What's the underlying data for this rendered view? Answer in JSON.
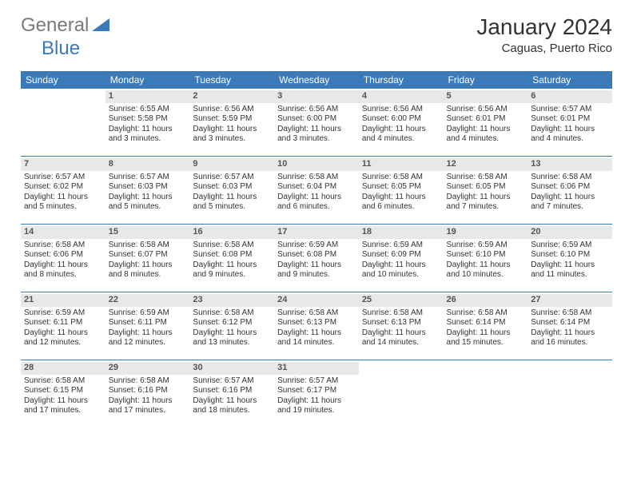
{
  "logo": {
    "general": "General",
    "blue": "Blue"
  },
  "title": "January 2024",
  "location": "Caguas, Puerto Rico",
  "colors": {
    "header_bg": "#3a7ab8",
    "daynum_bg": "#e8e8e8"
  },
  "weekdays": [
    "Sunday",
    "Monday",
    "Tuesday",
    "Wednesday",
    "Thursday",
    "Friday",
    "Saturday"
  ],
  "weeks": [
    [
      {
        "n": "",
        "sr": "",
        "ss": "",
        "dl": ""
      },
      {
        "n": "1",
        "sr": "Sunrise: 6:55 AM",
        "ss": "Sunset: 5:58 PM",
        "dl": "Daylight: 11 hours and 3 minutes."
      },
      {
        "n": "2",
        "sr": "Sunrise: 6:56 AM",
        "ss": "Sunset: 5:59 PM",
        "dl": "Daylight: 11 hours and 3 minutes."
      },
      {
        "n": "3",
        "sr": "Sunrise: 6:56 AM",
        "ss": "Sunset: 6:00 PM",
        "dl": "Daylight: 11 hours and 3 minutes."
      },
      {
        "n": "4",
        "sr": "Sunrise: 6:56 AM",
        "ss": "Sunset: 6:00 PM",
        "dl": "Daylight: 11 hours and 4 minutes."
      },
      {
        "n": "5",
        "sr": "Sunrise: 6:56 AM",
        "ss": "Sunset: 6:01 PM",
        "dl": "Daylight: 11 hours and 4 minutes."
      },
      {
        "n": "6",
        "sr": "Sunrise: 6:57 AM",
        "ss": "Sunset: 6:01 PM",
        "dl": "Daylight: 11 hours and 4 minutes."
      }
    ],
    [
      {
        "n": "7",
        "sr": "Sunrise: 6:57 AM",
        "ss": "Sunset: 6:02 PM",
        "dl": "Daylight: 11 hours and 5 minutes."
      },
      {
        "n": "8",
        "sr": "Sunrise: 6:57 AM",
        "ss": "Sunset: 6:03 PM",
        "dl": "Daylight: 11 hours and 5 minutes."
      },
      {
        "n": "9",
        "sr": "Sunrise: 6:57 AM",
        "ss": "Sunset: 6:03 PM",
        "dl": "Daylight: 11 hours and 5 minutes."
      },
      {
        "n": "10",
        "sr": "Sunrise: 6:58 AM",
        "ss": "Sunset: 6:04 PM",
        "dl": "Daylight: 11 hours and 6 minutes."
      },
      {
        "n": "11",
        "sr": "Sunrise: 6:58 AM",
        "ss": "Sunset: 6:05 PM",
        "dl": "Daylight: 11 hours and 6 minutes."
      },
      {
        "n": "12",
        "sr": "Sunrise: 6:58 AM",
        "ss": "Sunset: 6:05 PM",
        "dl": "Daylight: 11 hours and 7 minutes."
      },
      {
        "n": "13",
        "sr": "Sunrise: 6:58 AM",
        "ss": "Sunset: 6:06 PM",
        "dl": "Daylight: 11 hours and 7 minutes."
      }
    ],
    [
      {
        "n": "14",
        "sr": "Sunrise: 6:58 AM",
        "ss": "Sunset: 6:06 PM",
        "dl": "Daylight: 11 hours and 8 minutes."
      },
      {
        "n": "15",
        "sr": "Sunrise: 6:58 AM",
        "ss": "Sunset: 6:07 PM",
        "dl": "Daylight: 11 hours and 8 minutes."
      },
      {
        "n": "16",
        "sr": "Sunrise: 6:58 AM",
        "ss": "Sunset: 6:08 PM",
        "dl": "Daylight: 11 hours and 9 minutes."
      },
      {
        "n": "17",
        "sr": "Sunrise: 6:59 AM",
        "ss": "Sunset: 6:08 PM",
        "dl": "Daylight: 11 hours and 9 minutes."
      },
      {
        "n": "18",
        "sr": "Sunrise: 6:59 AM",
        "ss": "Sunset: 6:09 PM",
        "dl": "Daylight: 11 hours and 10 minutes."
      },
      {
        "n": "19",
        "sr": "Sunrise: 6:59 AM",
        "ss": "Sunset: 6:10 PM",
        "dl": "Daylight: 11 hours and 10 minutes."
      },
      {
        "n": "20",
        "sr": "Sunrise: 6:59 AM",
        "ss": "Sunset: 6:10 PM",
        "dl": "Daylight: 11 hours and 11 minutes."
      }
    ],
    [
      {
        "n": "21",
        "sr": "Sunrise: 6:59 AM",
        "ss": "Sunset: 6:11 PM",
        "dl": "Daylight: 11 hours and 12 minutes."
      },
      {
        "n": "22",
        "sr": "Sunrise: 6:59 AM",
        "ss": "Sunset: 6:11 PM",
        "dl": "Daylight: 11 hours and 12 minutes."
      },
      {
        "n": "23",
        "sr": "Sunrise: 6:58 AM",
        "ss": "Sunset: 6:12 PM",
        "dl": "Daylight: 11 hours and 13 minutes."
      },
      {
        "n": "24",
        "sr": "Sunrise: 6:58 AM",
        "ss": "Sunset: 6:13 PM",
        "dl": "Daylight: 11 hours and 14 minutes."
      },
      {
        "n": "25",
        "sr": "Sunrise: 6:58 AM",
        "ss": "Sunset: 6:13 PM",
        "dl": "Daylight: 11 hours and 14 minutes."
      },
      {
        "n": "26",
        "sr": "Sunrise: 6:58 AM",
        "ss": "Sunset: 6:14 PM",
        "dl": "Daylight: 11 hours and 15 minutes."
      },
      {
        "n": "27",
        "sr": "Sunrise: 6:58 AM",
        "ss": "Sunset: 6:14 PM",
        "dl": "Daylight: 11 hours and 16 minutes."
      }
    ],
    [
      {
        "n": "28",
        "sr": "Sunrise: 6:58 AM",
        "ss": "Sunset: 6:15 PM",
        "dl": "Daylight: 11 hours and 17 minutes."
      },
      {
        "n": "29",
        "sr": "Sunrise: 6:58 AM",
        "ss": "Sunset: 6:16 PM",
        "dl": "Daylight: 11 hours and 17 minutes."
      },
      {
        "n": "30",
        "sr": "Sunrise: 6:57 AM",
        "ss": "Sunset: 6:16 PM",
        "dl": "Daylight: 11 hours and 18 minutes."
      },
      {
        "n": "31",
        "sr": "Sunrise: 6:57 AM",
        "ss": "Sunset: 6:17 PM",
        "dl": "Daylight: 11 hours and 19 minutes."
      },
      {
        "n": "",
        "sr": "",
        "ss": "",
        "dl": ""
      },
      {
        "n": "",
        "sr": "",
        "ss": "",
        "dl": ""
      },
      {
        "n": "",
        "sr": "",
        "ss": "",
        "dl": ""
      }
    ]
  ]
}
